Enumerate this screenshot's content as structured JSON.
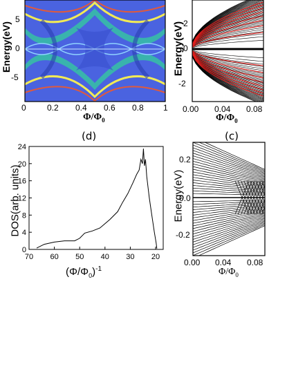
{
  "panel_a": {
    "ylabel": "Energy(eV)",
    "xlabel_main": "Φ/Φ",
    "xlabel_sub": "0",
    "x_ticks": [
      "0",
      "0.2",
      "0.4",
      "0.6",
      "0.8",
      "1"
    ],
    "y_ticks": [
      "5",
      "0",
      "-5"
    ],
    "colors": {
      "background": "#4a63e0",
      "band_edge": "#35c7a0",
      "highlight": "#f2ea55",
      "peak": "#e25a3a"
    }
  },
  "panel_b": {
    "ylabel": "Energy(eV)",
    "xlabel_main": "Φ/Φ",
    "xlabel_sub": "0",
    "x_ticks": [
      "0.00",
      "0.04",
      "0.08"
    ],
    "y_ticks": [
      "2",
      "0",
      "-2"
    ],
    "colors": {
      "lines": "#000000",
      "edge_lines": "#e0201e"
    }
  },
  "caption_d": "(d)",
  "caption_c": "(c)",
  "panel_d": {
    "ylabel": "DOS(arb. units)",
    "xlabel_main": "(Φ/Φ",
    "xlabel_sub": "0",
    "xlabel_close": ")",
    "xlabel_sup": "-1",
    "x_ticks": [
      "70",
      "60",
      "50",
      "40",
      "30",
      "20"
    ],
    "y_ticks": [
      "0",
      "4",
      "8",
      "12",
      "16",
      "20",
      "24"
    ]
  },
  "panel_c": {
    "ylabel": "Energy(eV)",
    "xlabel_main": "Φ/Φ",
    "xlabel_sub": "0",
    "x_ticks": [
      "0.00",
      "0.04",
      "0.08"
    ],
    "y_ticks": [
      "0.2",
      "0.0",
      "-0.2"
    ]
  },
  "chart_data": [
    {
      "type": "line",
      "panel": "d",
      "xlabel": "(Φ/Φ0)^-1",
      "ylabel": "DOS(arb. units)",
      "xlim": [
        70,
        17
      ],
      "ylim": [
        0,
        24
      ],
      "x": [
        67,
        64,
        60,
        56,
        52,
        50,
        48,
        45,
        42,
        40,
        38,
        35,
        33,
        31,
        29,
        27.5,
        26.5,
        25.8,
        25.2,
        24.8,
        24.4,
        24,
        23.5,
        22.5,
        21.5,
        20.5,
        19.8,
        19.5
      ],
      "y": [
        0.3,
        1.2,
        1.7,
        2.0,
        2.0,
        2.6,
        3.8,
        4.3,
        5.0,
        6.0,
        7.0,
        8.8,
        11.0,
        13.0,
        15.5,
        17.5,
        18.5,
        21.0,
        20.0,
        23.5,
        19.5,
        21.0,
        17.0,
        12.0,
        8.0,
        4.0,
        1.5,
        0.2
      ]
    }
  ]
}
